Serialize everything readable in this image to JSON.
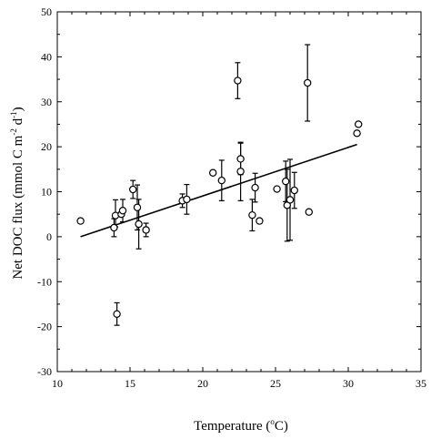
{
  "chart_data": {
    "type": "scatter",
    "title": "",
    "xlabel": "Temperature (",
    "xlabel_sup": "o",
    "xlabel_tail": "C)",
    "ylabel_main": "Net DOC flux (mmol C m",
    "ylabel_sup1": "-2",
    "ylabel_mid": " d",
    "ylabel_sup2": "-1",
    "ylabel_tail": ")",
    "xlim": [
      10,
      35
    ],
    "ylim": [
      -30,
      50
    ],
    "x_ticks": [
      10,
      15,
      20,
      25,
      30,
      35
    ],
    "y_ticks": [
      -30,
      -20,
      -10,
      0,
      10,
      20,
      30,
      40,
      50
    ],
    "x_tick_labels": [
      "10",
      "15",
      "20",
      "25",
      "30",
      "35"
    ],
    "y_tick_labels": [
      "-30",
      "-20",
      "-10",
      "0",
      "10",
      "20",
      "30",
      "40",
      "50"
    ],
    "grid": false,
    "points": [
      {
        "x": 11.6,
        "y": 3.5
      },
      {
        "x": 13.9,
        "y": 2.0,
        "err_low": 2.0,
        "err_high": 2.0
      },
      {
        "x": 14.0,
        "y": 4.7,
        "err_low": 2.5,
        "err_high": 3.5
      },
      {
        "x": 14.1,
        "y": -17.2,
        "err_low": 2.5,
        "err_high": 2.5
      },
      {
        "x": 14.4,
        "y": 5.0
      },
      {
        "x": 14.5,
        "y": 5.8,
        "err_low": 2.5,
        "err_high": 2.5
      },
      {
        "x": 15.2,
        "y": 10.5,
        "err_low": 2.0,
        "err_high": 2.0
      },
      {
        "x": 15.5,
        "y": 6.5,
        "err_low": 5.0,
        "err_high": 5.0
      },
      {
        "x": 15.6,
        "y": 2.8,
        "err_low": 5.5,
        "err_high": 5.5
      },
      {
        "x": 16.1,
        "y": 1.5,
        "err_low": 1.5,
        "err_high": 1.5
      },
      {
        "x": 18.6,
        "y": 8.0,
        "err_low": 1.5,
        "err_high": 1.5
      },
      {
        "x": 18.9,
        "y": 8.3,
        "err_low": 3.3,
        "err_high": 3.3
      },
      {
        "x": 20.7,
        "y": 14.2
      },
      {
        "x": 21.3,
        "y": 12.5,
        "err_low": 4.5,
        "err_high": 4.5
      },
      {
        "x": 22.4,
        "y": 34.7,
        "err_low": 4.0,
        "err_high": 4.0
      },
      {
        "x": 22.6,
        "y": 17.3,
        "err_low": 3.5,
        "err_high": 3.5
      },
      {
        "x": 22.6,
        "y": 14.5,
        "err_low": 6.5,
        "err_high": 6.5
      },
      {
        "x": 23.4,
        "y": 4.8,
        "err_low": 3.5,
        "err_high": 3.5
      },
      {
        "x": 23.6,
        "y": 10.9,
        "err_low": 3.2,
        "err_high": 3.2
      },
      {
        "x": 23.9,
        "y": 3.5
      },
      {
        "x": 25.1,
        "y": 10.6
      },
      {
        "x": 25.7,
        "y": 12.3,
        "err_low": 4.5,
        "err_high": 4.5
      },
      {
        "x": 25.8,
        "y": 7.0,
        "err_low": 8.0,
        "err_high": 8.0
      },
      {
        "x": 26.0,
        "y": 8.2,
        "err_low": 9.0,
        "err_high": 9.0
      },
      {
        "x": 26.3,
        "y": 10.3,
        "err_low": 4.0,
        "err_high": 4.0
      },
      {
        "x": 27.2,
        "y": 34.2,
        "err_low": 8.5,
        "err_high": 8.5
      },
      {
        "x": 27.3,
        "y": 5.5
      },
      {
        "x": 30.6,
        "y": 23.0
      },
      {
        "x": 30.7,
        "y": 25.0
      }
    ],
    "fit_line": {
      "x": [
        11.6,
        30.6
      ],
      "y": [
        0.0,
        20.5
      ]
    }
  }
}
